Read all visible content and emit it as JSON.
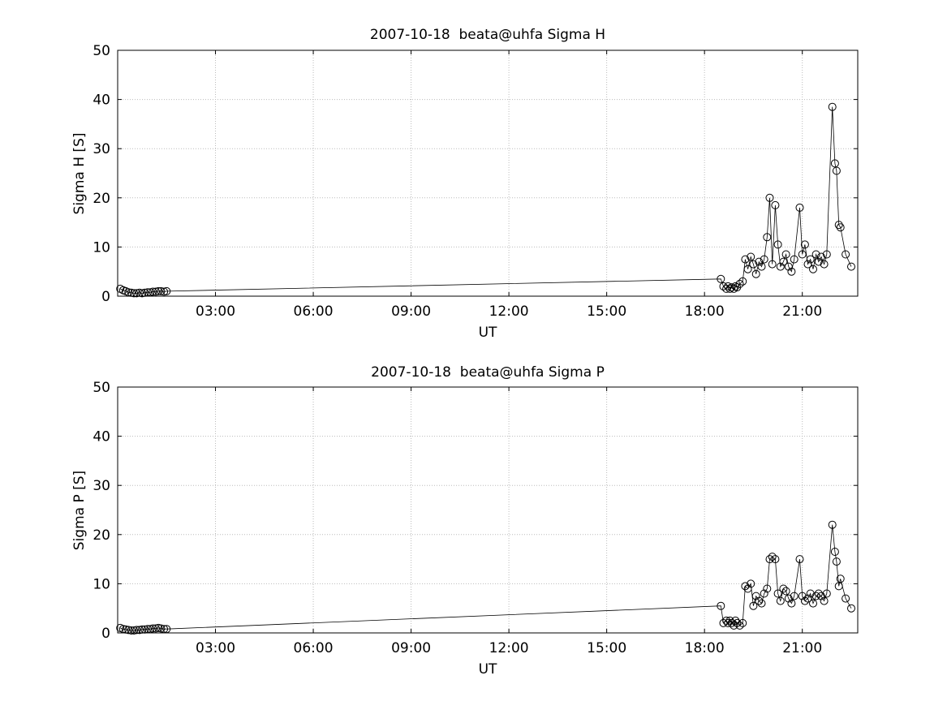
{
  "page": {
    "background": "#ffffff",
    "date": "2007-10-18",
    "source": "beata@uhfa"
  },
  "chart_data": [
    {
      "type": "line",
      "title": "2007-10-18  beata@uhfa Sigma H",
      "xlabel": "UT",
      "ylabel": "Sigma H [S]",
      "xlim": [
        0,
        22.7
      ],
      "ylim": [
        0,
        50
      ],
      "yticks": [
        0,
        10,
        20,
        30,
        40,
        50
      ],
      "xticks": [
        {
          "value": 3,
          "label": "03:00"
        },
        {
          "value": 6,
          "label": "06:00"
        },
        {
          "value": 9,
          "label": "09:00"
        },
        {
          "value": 12,
          "label": "12:00"
        },
        {
          "value": 15,
          "label": "15:00"
        },
        {
          "value": 18,
          "label": "18:00"
        },
        {
          "value": 21,
          "label": "21:00"
        }
      ],
      "grid": true,
      "grid_color": "#bbbbbb",
      "axis_color": "#000000",
      "line_color": "#000000",
      "marker": "open-circle",
      "series": [
        {
          "name": "Sigma H",
          "x": [
            0.08,
            0.17,
            0.25,
            0.33,
            0.42,
            0.5,
            0.58,
            0.67,
            0.75,
            0.83,
            0.92,
            1.0,
            1.08,
            1.17,
            1.25,
            1.33,
            1.42,
            1.5,
            18.5,
            18.58,
            18.67,
            18.72,
            18.78,
            18.83,
            18.9,
            18.95,
            19.0,
            19.08,
            19.17,
            19.25,
            19.33,
            19.42,
            19.5,
            19.58,
            19.67,
            19.75,
            19.83,
            19.92,
            20.0,
            20.08,
            20.17,
            20.25,
            20.33,
            20.42,
            20.5,
            20.58,
            20.67,
            20.75,
            20.92,
            21.0,
            21.08,
            21.17,
            21.25,
            21.33,
            21.42,
            21.5,
            21.58,
            21.67,
            21.75,
            21.92,
            22.0,
            22.05,
            22.12,
            22.17,
            22.33,
            22.5
          ],
          "y": [
            1.5,
            1.2,
            1.0,
            0.8,
            0.7,
            0.6,
            0.6,
            0.7,
            0.6,
            0.7,
            0.8,
            0.8,
            0.9,
            0.9,
            1.0,
            1.0,
            0.9,
            1.0,
            3.5,
            2.0,
            1.5,
            2.0,
            1.5,
            1.8,
            1.5,
            2.0,
            1.8,
            2.5,
            3.0,
            7.5,
            5.5,
            8.0,
            6.5,
            4.5,
            7.0,
            6.0,
            7.5,
            12.0,
            20.0,
            6.5,
            18.5,
            10.5,
            6.0,
            7.0,
            8.5,
            6.0,
            5.0,
            7.5,
            18.0,
            8.5,
            10.5,
            6.5,
            7.5,
            5.5,
            8.5,
            7.0,
            8.0,
            6.5,
            8.5,
            38.5,
            27.0,
            25.5,
            14.5,
            14.0,
            8.5,
            6.0
          ]
        }
      ]
    },
    {
      "type": "line",
      "title": "2007-10-18  beata@uhfa Sigma P",
      "xlabel": "UT",
      "ylabel": "Sigma P [S]",
      "xlim": [
        0,
        22.7
      ],
      "ylim": [
        0,
        50
      ],
      "yticks": [
        0,
        10,
        20,
        30,
        40,
        50
      ],
      "xticks": [
        {
          "value": 3,
          "label": "03:00"
        },
        {
          "value": 6,
          "label": "06:00"
        },
        {
          "value": 9,
          "label": "09:00"
        },
        {
          "value": 12,
          "label": "12:00"
        },
        {
          "value": 15,
          "label": "15:00"
        },
        {
          "value": 18,
          "label": "18:00"
        },
        {
          "value": 21,
          "label": "21:00"
        }
      ],
      "grid": true,
      "grid_color": "#bbbbbb",
      "axis_color": "#000000",
      "line_color": "#000000",
      "marker": "open-circle",
      "series": [
        {
          "name": "Sigma P",
          "x": [
            0.08,
            0.17,
            0.25,
            0.33,
            0.42,
            0.5,
            0.58,
            0.67,
            0.75,
            0.83,
            0.92,
            1.0,
            1.08,
            1.17,
            1.25,
            1.33,
            1.42,
            1.5,
            18.5,
            18.58,
            18.67,
            18.72,
            18.78,
            18.83,
            18.9,
            18.95,
            19.0,
            19.08,
            19.17,
            19.25,
            19.33,
            19.42,
            19.5,
            19.58,
            19.67,
            19.75,
            19.83,
            19.92,
            20.0,
            20.08,
            20.17,
            20.25,
            20.33,
            20.42,
            20.5,
            20.58,
            20.67,
            20.75,
            20.92,
            21.0,
            21.08,
            21.17,
            21.25,
            21.33,
            21.42,
            21.5,
            21.58,
            21.67,
            21.75,
            21.92,
            22.0,
            22.05,
            22.12,
            22.17,
            22.33,
            22.5
          ],
          "y": [
            1.0,
            0.8,
            0.7,
            0.6,
            0.5,
            0.5,
            0.6,
            0.6,
            0.7,
            0.7,
            0.8,
            0.8,
            0.9,
            0.9,
            1.0,
            0.9,
            0.8,
            0.8,
            5.5,
            2.0,
            2.5,
            2.0,
            2.5,
            2.0,
            1.5,
            2.5,
            2.0,
            1.5,
            2.0,
            9.5,
            9.0,
            10.0,
            5.5,
            7.5,
            6.5,
            6.0,
            8.0,
            9.0,
            15.0,
            15.5,
            15.0,
            8.0,
            6.5,
            9.0,
            8.5,
            7.0,
            6.0,
            7.5,
            15.0,
            7.5,
            6.5,
            7.0,
            8.0,
            6.0,
            7.5,
            8.0,
            7.5,
            6.5,
            8.0,
            22.0,
            16.5,
            14.5,
            9.5,
            11.0,
            7.0,
            5.0
          ]
        }
      ]
    }
  ]
}
